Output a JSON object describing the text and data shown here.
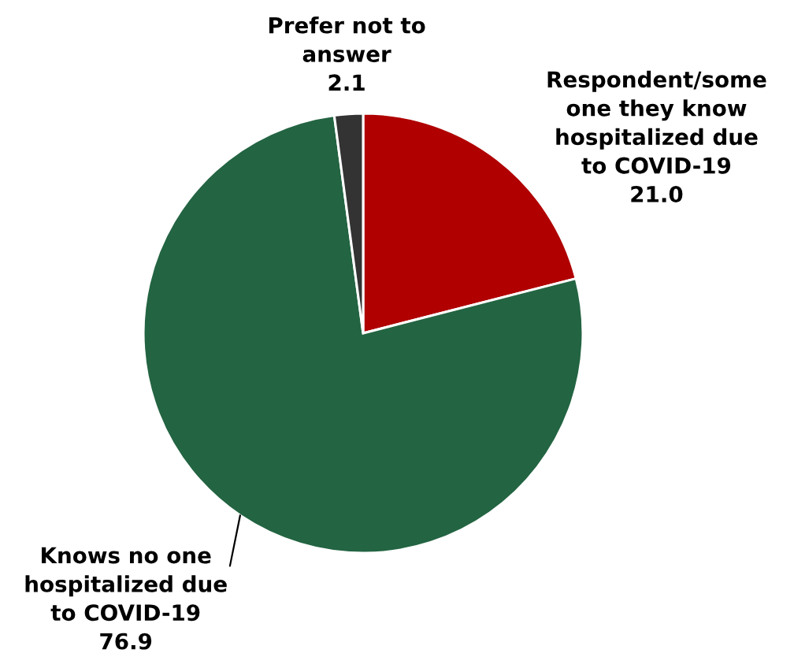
{
  "chart_data": {
    "type": "pie",
    "categories": [
      "Respondent/some\none they know\nhospitalized due\nto COVID-19",
      "Knows no one\nhospitalized due\nto COVID-19",
      "Prefer not to\nanswer"
    ],
    "values": [
      21.0,
      76.9,
      2.1
    ],
    "value_labels": [
      "21.0",
      "76.9",
      "2.1"
    ],
    "colors": [
      "#b00000",
      "#236442",
      "#333333"
    ]
  }
}
